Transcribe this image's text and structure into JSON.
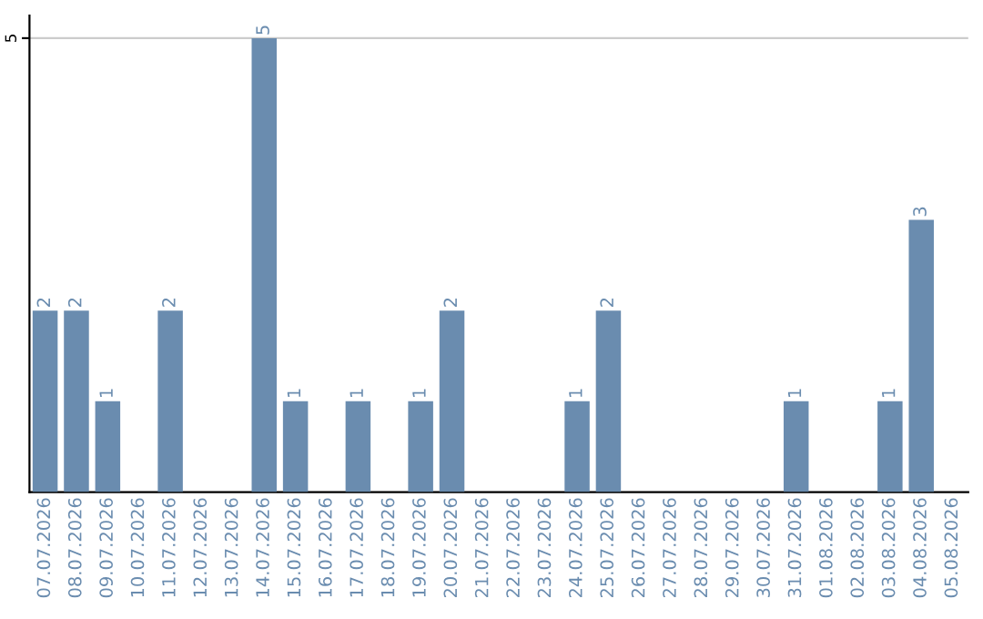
{
  "chart_data": {
    "type": "bar",
    "categories": [
      "07.07.2026",
      "08.07.2026",
      "09.07.2026",
      "10.07.2026",
      "11.07.2026",
      "12.07.2026",
      "13.07.2026",
      "14.07.2026",
      "15.07.2026",
      "16.07.2026",
      "17.07.2026",
      "18.07.2026",
      "19.07.2026",
      "20.07.2026",
      "21.07.2026",
      "22.07.2026",
      "23.07.2026",
      "24.07.2026",
      "25.07.2026",
      "26.07.2026",
      "27.07.2026",
      "28.07.2026",
      "29.07.2026",
      "30.07.2026",
      "31.07.2026",
      "01.08.2026",
      "02.08.2026",
      "03.08.2026",
      "04.08.2026",
      "05.08.2026"
    ],
    "values": [
      2,
      2,
      1,
      0,
      2,
      0,
      0,
      5,
      1,
      0,
      1,
      0,
      1,
      2,
      0,
      0,
      0,
      1,
      2,
      0,
      0,
      0,
      0,
      0,
      1,
      0,
      0,
      1,
      3,
      0
    ],
    "value_labels": [
      "2",
      "2",
      "1",
      null,
      "2",
      null,
      null,
      "5",
      "1",
      null,
      "1",
      null,
      "1",
      "2",
      null,
      null,
      null,
      "1",
      "2",
      null,
      null,
      null,
      null,
      null,
      "1",
      null,
      null,
      "1",
      "3",
      null
    ],
    "color": "#6a8caf",
    "ylim": [
      0,
      5.25
    ],
    "yticks": [
      5
    ],
    "grid": "y"
  }
}
